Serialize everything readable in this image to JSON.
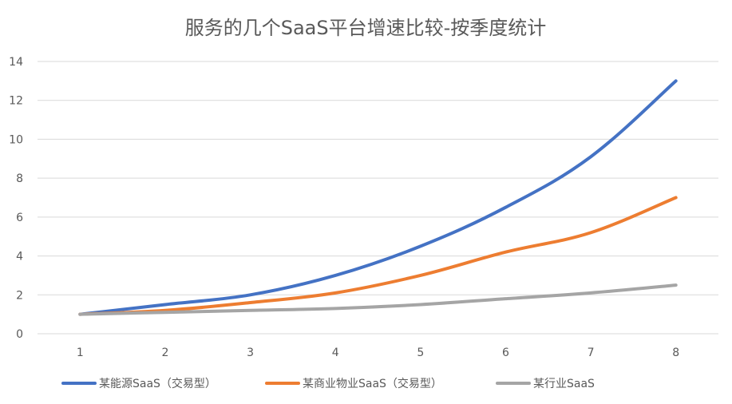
{
  "chart_data": {
    "type": "line",
    "title": "服务的几个SaaS平台增速比较-按季度统计",
    "xlabel": "",
    "ylabel": "",
    "categories": [
      "1",
      "2",
      "3",
      "4",
      "5",
      "6",
      "7",
      "8"
    ],
    "ylim": [
      0,
      14
    ],
    "yticks": [
      0,
      2,
      4,
      6,
      8,
      10,
      12,
      14
    ],
    "grid": "horizontal",
    "legend_position": "bottom",
    "series": [
      {
        "name": "某能源SaaS（交易型）",
        "color": "#4472C4",
        "values": [
          1,
          1.5,
          2,
          3,
          4.5,
          6.5,
          9.1,
          13
        ]
      },
      {
        "name": "某商业物业SaaS（交易型）",
        "color": "#ED7D31",
        "values": [
          1,
          1.2,
          1.6,
          2.1,
          3,
          4.2,
          5.2,
          7
        ]
      },
      {
        "name": "某行业SaaS",
        "color": "#A5A5A5",
        "values": [
          1,
          1.1,
          1.2,
          1.3,
          1.5,
          1.8,
          2.1,
          2.5
        ]
      }
    ]
  }
}
